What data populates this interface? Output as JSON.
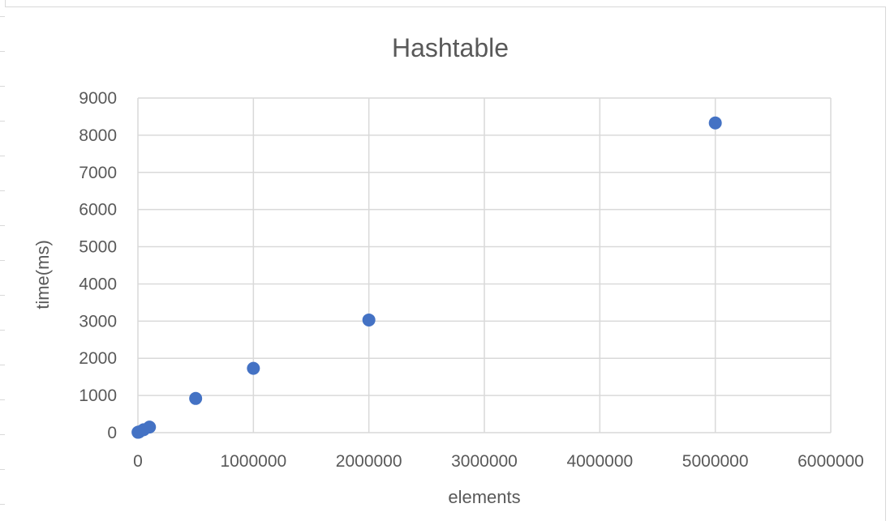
{
  "chart_data": {
    "type": "scatter",
    "title": "Hashtable",
    "xlabel": "elements",
    "ylabel": "time(ms)",
    "xlim": [
      0,
      6000000
    ],
    "ylim": [
      0,
      9000
    ],
    "xticks": [
      0,
      1000000,
      2000000,
      3000000,
      4000000,
      5000000,
      6000000
    ],
    "yticks": [
      0,
      1000,
      2000,
      3000,
      4000,
      5000,
      6000,
      7000,
      8000,
      9000
    ],
    "xtick_labels": [
      "0",
      "1000000",
      "2000000",
      "3000000",
      "4000000",
      "5000000",
      "6000000"
    ],
    "ytick_labels": [
      "0",
      "1000",
      "2000",
      "3000",
      "4000",
      "5000",
      "6000",
      "7000",
      "8000",
      "9000"
    ],
    "grid": true,
    "legend": "none",
    "series": [
      {
        "color": "#4472c4",
        "points": [
          {
            "x": 1000,
            "y": 10
          },
          {
            "x": 10000,
            "y": 20
          },
          {
            "x": 50000,
            "y": 80
          },
          {
            "x": 100000,
            "y": 150
          },
          {
            "x": 500000,
            "y": 920
          },
          {
            "x": 1000000,
            "y": 1730
          },
          {
            "x": 2000000,
            "y": 3030
          },
          {
            "x": 5000000,
            "y": 8330
          }
        ]
      }
    ]
  }
}
